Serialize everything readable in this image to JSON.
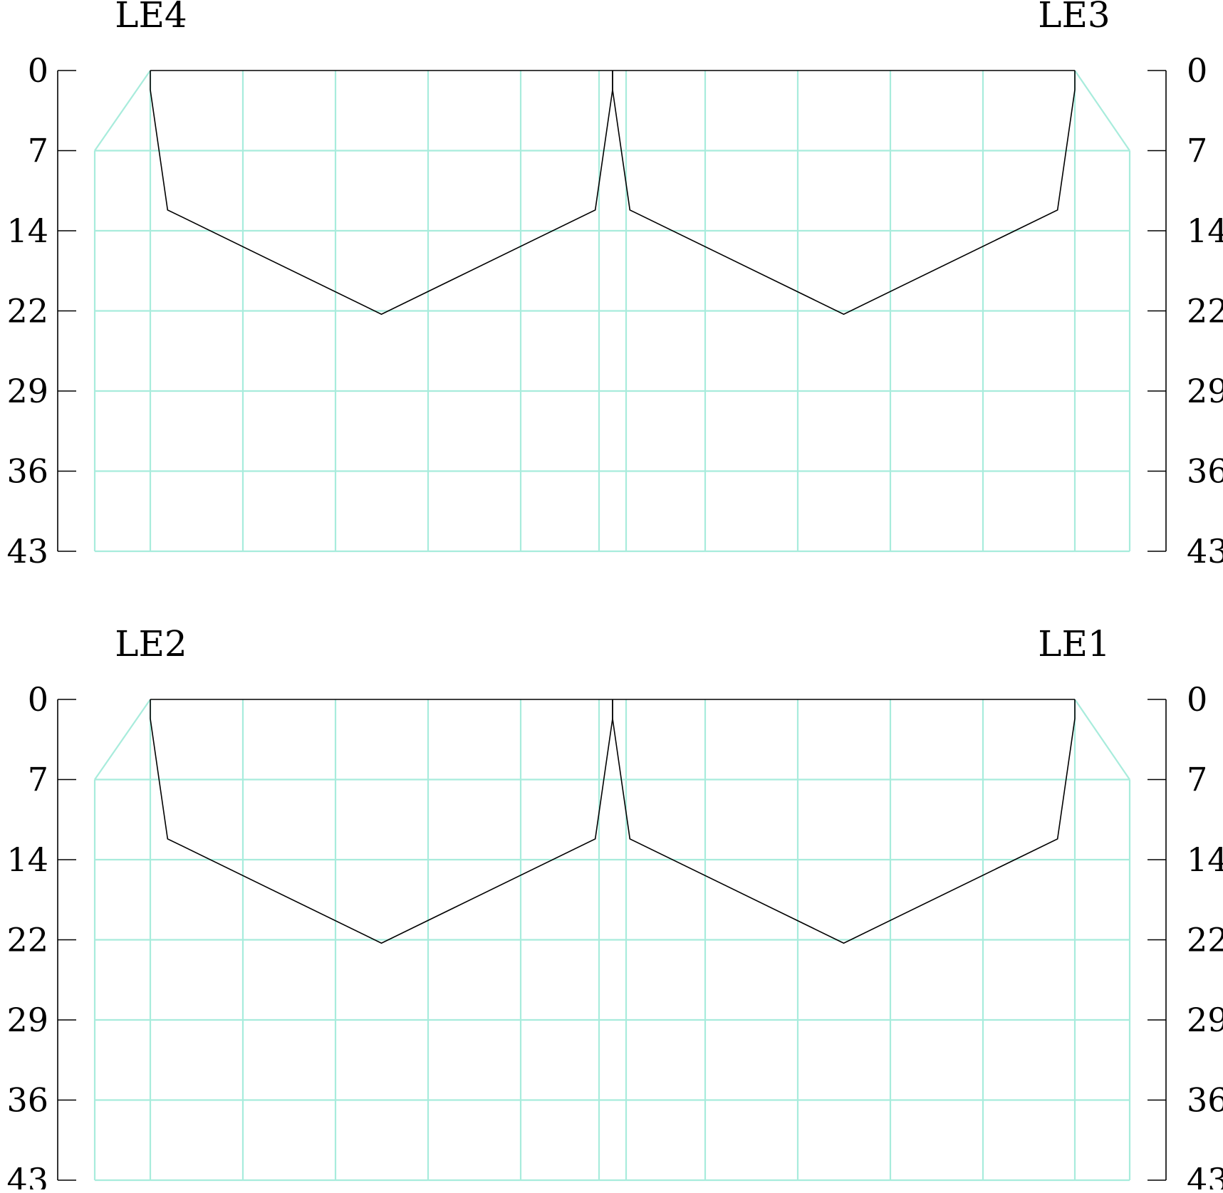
{
  "colors": {
    "grid": "#a8ecdc",
    "outline": "#000000",
    "background": "#ffffff"
  },
  "chart_data": [
    {
      "type": "line",
      "panel": "top",
      "left_label": "LE4",
      "right_label": "LE3",
      "yticks": [
        "0",
        "7",
        "14",
        "22",
        "29",
        "36",
        "43"
      ],
      "ylim": [
        0,
        43
      ],
      "y_inverted": true,
      "grid": true
    },
    {
      "type": "line",
      "panel": "bottom",
      "left_label": "LE2",
      "right_label": "LE1",
      "yticks": [
        "0",
        "7",
        "14",
        "22",
        "29",
        "36",
        "43"
      ],
      "ylim": [
        0,
        43
      ],
      "y_inverted": true,
      "grid": true
    }
  ]
}
